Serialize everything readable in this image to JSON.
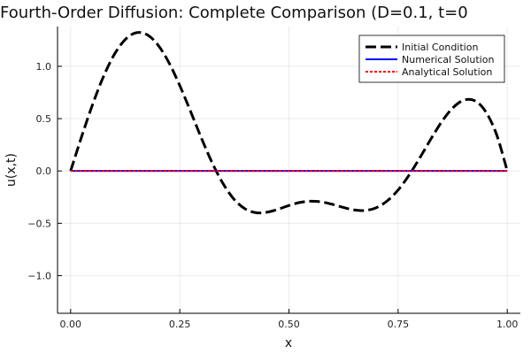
{
  "chart_data": {
    "type": "line",
    "title": "Fourth-Order Diffusion: Complete Comparison (D=0.1, t=0",
    "xlabel": "x",
    "ylabel": "u(x,t)",
    "xlim": [
      -0.03,
      1.03
    ],
    "ylim": [
      -1.36,
      1.38
    ],
    "xticks": [
      0.0,
      0.25,
      0.5,
      0.75,
      1.0
    ],
    "xtick_labels": [
      "0.00",
      "0.25",
      "0.50",
      "0.75",
      "1.00"
    ],
    "yticks": [
      -1.0,
      -0.5,
      0.0,
      0.5,
      1.0
    ],
    "ytick_labels": [
      "−1.0",
      "−0.5",
      "0.0",
      "0.5",
      "1.0"
    ],
    "grid": true,
    "legend_position": "top-right",
    "series": [
      {
        "name": "Initial Condition",
        "color": "#000000",
        "style": "dashed",
        "x": [
          0.0,
          0.025,
          0.05,
          0.075,
          0.1,
          0.125,
          0.15,
          0.175,
          0.2,
          0.225,
          0.25,
          0.275,
          0.3,
          0.325,
          0.35,
          0.375,
          0.4,
          0.425,
          0.45,
          0.475,
          0.5,
          0.525,
          0.55,
          0.575,
          0.6,
          0.625,
          0.65,
          0.675,
          0.7,
          0.725,
          0.75,
          0.775,
          0.8,
          0.825,
          0.85,
          0.875,
          0.9,
          0.925,
          0.95,
          0.975,
          1.0
        ],
        "y": [
          0.0,
          0.326,
          0.632,
          0.9,
          1.113,
          1.256,
          1.321,
          1.302,
          1.204,
          1.036,
          0.816,
          0.566,
          0.309,
          0.071,
          -0.127,
          -0.274,
          -0.363,
          -0.399,
          -0.394,
          -0.366,
          -0.33,
          -0.301,
          -0.289,
          -0.296,
          -0.319,
          -0.349,
          -0.373,
          -0.377,
          -0.351,
          -0.286,
          -0.182,
          -0.04,
          0.128,
          0.305,
          0.471,
          0.602,
          0.676,
          0.672,
          0.57,
          0.354,
          0.0
        ]
      },
      {
        "name": "Numerical Solution",
        "color": "#0000ff",
        "style": "solid",
        "x": [
          0.0,
          1.0
        ],
        "y": [
          0.0,
          0.0
        ]
      },
      {
        "name": "Analytical Solution",
        "color": "#ff0000",
        "style": "dotted",
        "x": [
          0.0,
          1.0
        ],
        "y": [
          0.0,
          0.0
        ]
      }
    ]
  }
}
